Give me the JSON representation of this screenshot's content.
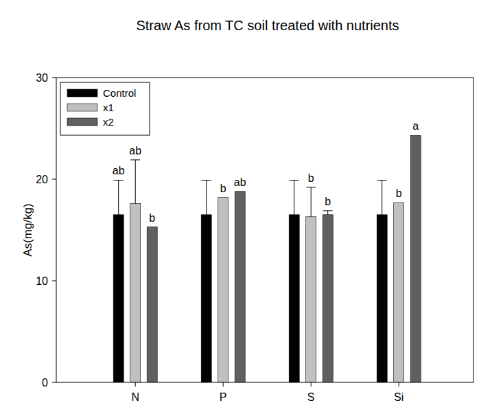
{
  "chart_data": {
    "type": "bar",
    "title": "Straw As from TC soil treated with nutrients",
    "y_label": "As(mg/kg)",
    "categories": [
      "N",
      "P",
      "S",
      "Si"
    ],
    "series": [
      {
        "name": "Control",
        "color": "#000000",
        "values": [
          16.5,
          16.5,
          16.5,
          16.5
        ],
        "errors": [
          3.4,
          3.4,
          3.4,
          3.4
        ],
        "significance": [
          "ab",
          null,
          null,
          null
        ]
      },
      {
        "name": "x1",
        "color": "#c0c0c0",
        "values": [
          17.6,
          18.2,
          16.3,
          17.7
        ],
        "errors": [
          4.3,
          null,
          2.9,
          null
        ],
        "significance": [
          "ab",
          "b",
          "b",
          "b"
        ]
      },
      {
        "name": "x2",
        "color": "#606060",
        "values": [
          15.3,
          18.8,
          16.5,
          24.3
        ],
        "errors": [
          null,
          null,
          0.4,
          null
        ],
        "significance": [
          "b",
          "ab",
          "b",
          "a"
        ]
      }
    ],
    "ylim": [
      0,
      30
    ],
    "yticks": [
      0,
      10,
      20,
      30
    ],
    "grid": false,
    "legend": "upper-left"
  }
}
